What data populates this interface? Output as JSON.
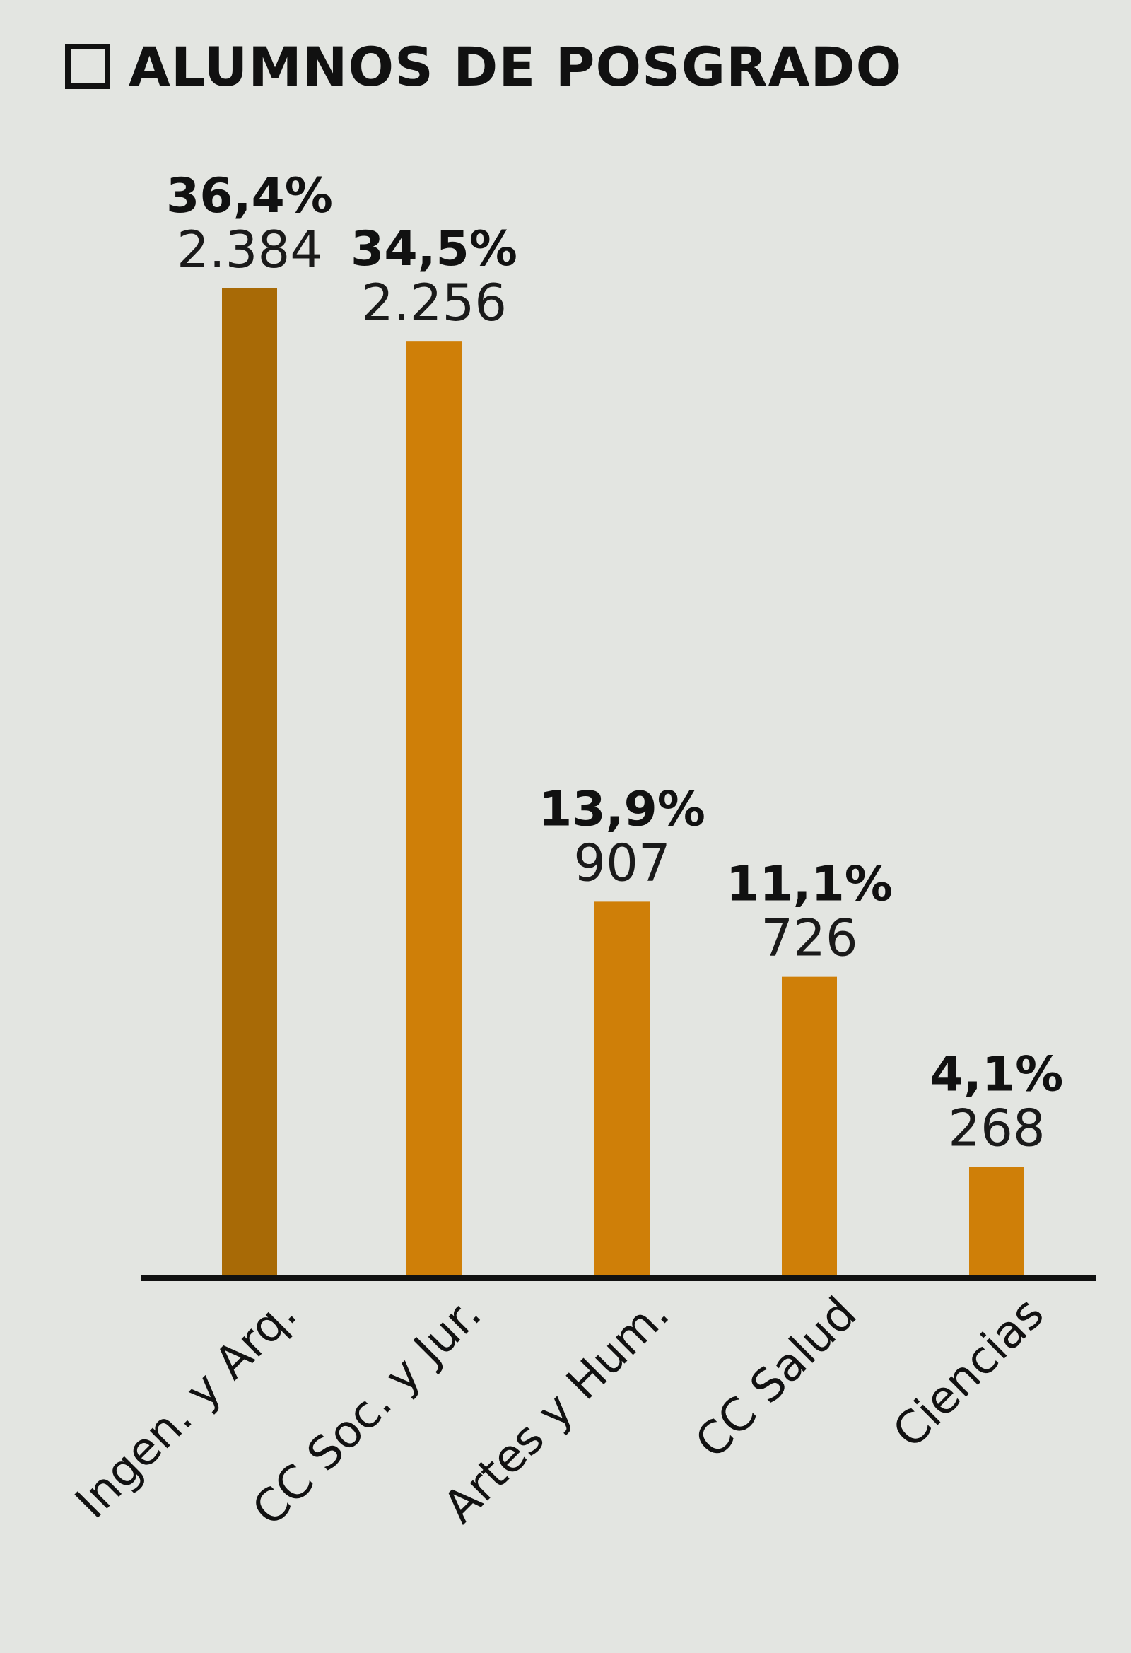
{
  "title": "ALUMNOS DE POSGRADO",
  "chart_data": {
    "type": "bar",
    "title": "ALUMNOS DE POSGRADO",
    "xlabel": "",
    "ylabel": "",
    "categories": [
      "Ingen. y Arq.",
      "CC Soc. y Jur.",
      "Artes y Hum.",
      "CC Salud",
      "Ciencias"
    ],
    "values": [
      2384,
      2256,
      907,
      726,
      268
    ],
    "value_labels": [
      "2.384",
      "2.256",
      "907",
      "726",
      "268"
    ],
    "percent_labels": [
      "36,4%",
      "34,5%",
      "13,9%",
      "11,1%",
      "4,1%"
    ],
    "ylim": [
      0,
      2384
    ],
    "grid": false,
    "legend": "none",
    "colors": {
      "highlight": "#a86a06",
      "bar": "#cf7f08",
      "axis": "#111111",
      "background": "#e3e5e1"
    }
  }
}
